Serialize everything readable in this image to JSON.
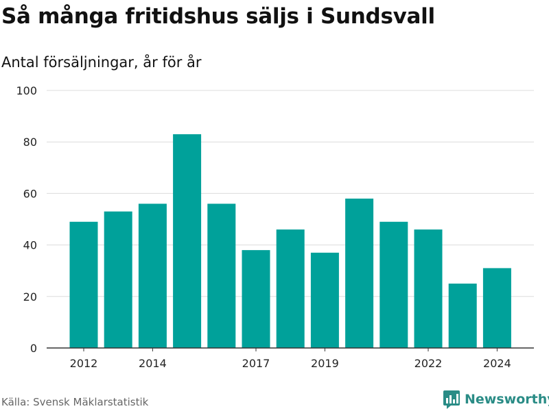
{
  "header": {
    "title": "Så många fritidshus säljs i Sundsvall",
    "subtitle": "Antal försäljningar, år för år"
  },
  "footer": {
    "source": "Källa: Svensk Mäklarstatistik",
    "brand": "Newsworthy"
  },
  "colors": {
    "bar": "#00a19a",
    "grid": "#dcdcdc",
    "axis": "#333333",
    "brand": "#2a8c86"
  },
  "chart_data": {
    "type": "bar",
    "title": "Så många fritidshus säljs i Sundsvall",
    "subtitle": "Antal försäljningar, år för år",
    "categories": [
      "2012",
      "2013",
      "2014",
      "2015",
      "2016",
      "2017",
      "2018",
      "2019",
      "2020",
      "2021",
      "2022",
      "2023",
      "2024"
    ],
    "values": [
      49,
      53,
      56,
      83,
      56,
      38,
      46,
      37,
      58,
      49,
      46,
      25,
      31
    ],
    "x_tick_labels": [
      "2012",
      "2014",
      "2017",
      "2019",
      "2022",
      "2024"
    ],
    "y_ticks": [
      0,
      20,
      40,
      60,
      80,
      100
    ],
    "ylim": [
      0,
      100
    ],
    "xlabel": "",
    "ylabel": "",
    "grid": true,
    "legend": "none"
  }
}
